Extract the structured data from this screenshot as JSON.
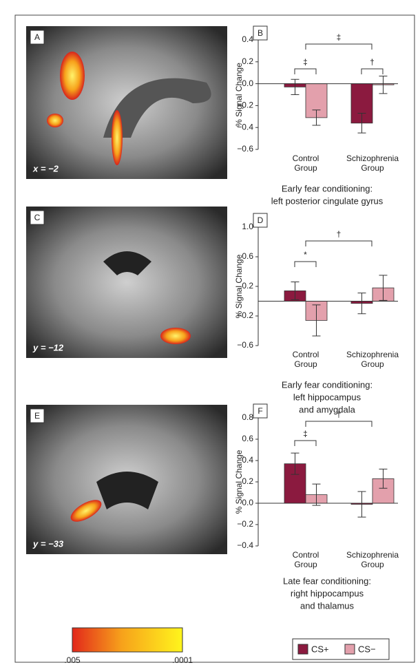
{
  "chart_data": [
    {
      "type": "bar",
      "panel": "B",
      "ylabel": "% Signal Change",
      "categories": [
        "Control Group",
        "Schizophrenia Group"
      ],
      "series": [
        {
          "name": "CS+",
          "color": "#8b1a3f",
          "values": [
            -0.03,
            -0.36
          ],
          "errors": [
            0.07,
            0.09
          ]
        },
        {
          "name": "CS−",
          "color": "#e3a0ac",
          "values": [
            -0.31,
            -0.01
          ],
          "errors": [
            0.07,
            0.08
          ]
        }
      ],
      "ylim": [
        -0.6,
        0.4
      ],
      "yticks": [
        0.4,
        0.2,
        {
          "value": 0,
          "label": "0.0"
        },
        {
          "value": -0.2,
          "label": "−0.2"
        },
        {
          "value": -0.4,
          "label": "−0.4"
        },
        {
          "value": -0.6,
          "label": "−0.6"
        }
      ],
      "annotations": [
        "‡",
        "†",
        "‡"
      ],
      "xlabel": [
        "Early fear conditioning:",
        "left posterior cingulate gyrus"
      ]
    },
    {
      "type": "bar",
      "panel": "D",
      "ylabel": "% Signal Change",
      "categories": [
        "Control Group",
        "Schizophrenia Group"
      ],
      "series": [
        {
          "name": "CS+",
          "color": "#8b1a3f",
          "values": [
            0.14,
            -0.03
          ],
          "errors": [
            0.12,
            0.14
          ]
        },
        {
          "name": "CS−",
          "color": "#e3a0ac",
          "values": [
            -0.26,
            0.18
          ],
          "errors": [
            0.21,
            0.17
          ]
        }
      ],
      "ylim": [
        -0.6,
        1.0
      ],
      "yticks": [
        {
          "value": 1.0,
          "label": "1.0"
        },
        0.6,
        0.2,
        {
          "value": -0.2,
          "label": "−0.2"
        },
        {
          "value": -0.6,
          "label": "−0.6"
        }
      ],
      "annotations": [
        "*",
        "†"
      ],
      "xlabel": [
        "Early fear conditioning:",
        "left hippocampus",
        "and amygdala"
      ]
    },
    {
      "type": "bar",
      "panel": "F",
      "ylabel": "% Signal Change",
      "categories": [
        "Control Group",
        "Schizophrenia Group"
      ],
      "series": [
        {
          "name": "CS+",
          "color": "#8b1a3f",
          "values": [
            0.37,
            -0.01
          ],
          "errors": [
            0.1,
            0.12
          ]
        },
        {
          "name": "CS−",
          "color": "#e3a0ac",
          "values": [
            0.08,
            0.23
          ],
          "errors": [
            0.1,
            0.09
          ]
        }
      ],
      "ylim": [
        -0.4,
        0.8
      ],
      "yticks": [
        0.8,
        0.6,
        0.4,
        0.2,
        {
          "value": 0,
          "label": "0.0"
        },
        {
          "value": -0.2,
          "label": "−0.2"
        },
        {
          "value": -0.4,
          "label": "−0.4"
        }
      ],
      "annotations": [
        "‡",
        "†"
      ],
      "xlabel": [
        "Late fear conditioning:",
        "right hippocampus",
        "and thalamus"
      ]
    }
  ],
  "images": [
    {
      "panel": "A",
      "coord": "x = −2"
    },
    {
      "panel": "C",
      "coord": "y = −12"
    },
    {
      "panel": "E",
      "coord": "y = −33"
    }
  ],
  "colorbar": {
    "min_label": ".005",
    "max_label": ".0001"
  }
}
